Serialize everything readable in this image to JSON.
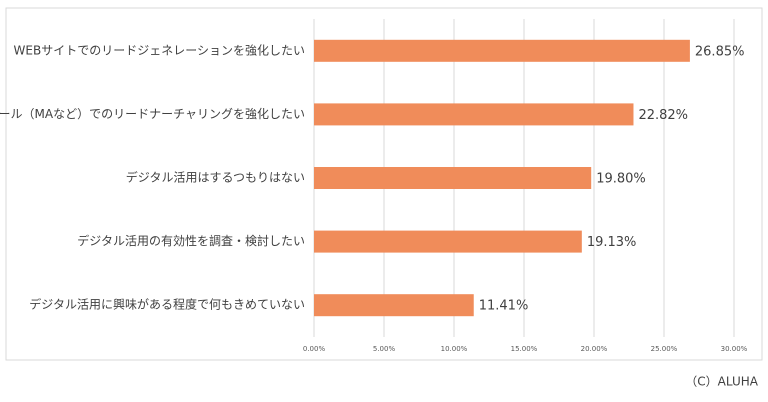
{
  "chart_data": {
    "type": "bar",
    "orientation": "horizontal",
    "categories": [
      "WEBサイトでのリードジェネレーションを強化したい",
      "メール（MAなど）でのリードナーチャリングを強化したい",
      "デジタル活用はするつもりはない",
      "デジタル活用の有効性を調査・検討したい",
      "デジタル活用に興味がある程度で何もきめていない"
    ],
    "values": [
      26.85,
      22.82,
      19.8,
      19.13,
      11.41
    ],
    "value_labels": [
      "26.85%",
      "22.82%",
      "19.80%",
      "19.13%",
      "11.41%"
    ],
    "color": "#f08c5a",
    "xlim": [
      0,
      30
    ],
    "xticks": [
      {
        "value": 0,
        "label": "0.00%"
      },
      {
        "value": 5,
        "label": "5.00%"
      },
      {
        "value": 10,
        "label": "10.00%"
      },
      {
        "value": 15,
        "label": "15.00%"
      },
      {
        "value": 20,
        "label": "20.00%"
      },
      {
        "value": 25,
        "label": "25.00%"
      },
      {
        "value": 30,
        "label": "30.00%"
      }
    ],
    "grid": true
  },
  "footer": "（C）ALUHA"
}
